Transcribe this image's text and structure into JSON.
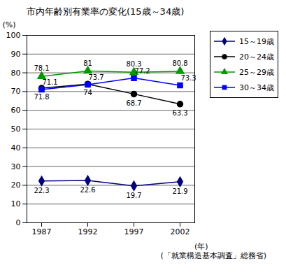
{
  "chart_data": {
    "type": "line",
    "title": "市内年齢別有業率の変化(15歳～34歳)",
    "y_label": "(%)",
    "x_label": "(年)",
    "source": "(「就業構造基本調査」総務省)",
    "categories": [
      1987,
      1992,
      1997,
      2002
    ],
    "series": [
      {
        "name": "15～19歳",
        "color": "#000080",
        "marker": "diamond",
        "values": [
          22.3,
          22.6,
          19.7,
          21.9
        ]
      },
      {
        "name": "20～24歳",
        "color": "#000000",
        "marker": "circle",
        "values": [
          71.8,
          74.0,
          68.7,
          63.3
        ]
      },
      {
        "name": "25～29歳",
        "color": "#009900",
        "marker": "triangle",
        "values": [
          78.1,
          81.0,
          80.3,
          80.8
        ]
      },
      {
        "name": "30～34歳",
        "color": "#0000ff",
        "marker": "square",
        "values": [
          71.1,
          73.7,
          77.2,
          73.3
        ]
      }
    ],
    "ylim": [
      0,
      100
    ],
    "yticks": [
      0,
      10,
      20,
      30,
      40,
      50,
      60,
      70,
      80,
      90,
      100
    ],
    "grid": true,
    "legend": "top-right",
    "data_labels": true
  }
}
